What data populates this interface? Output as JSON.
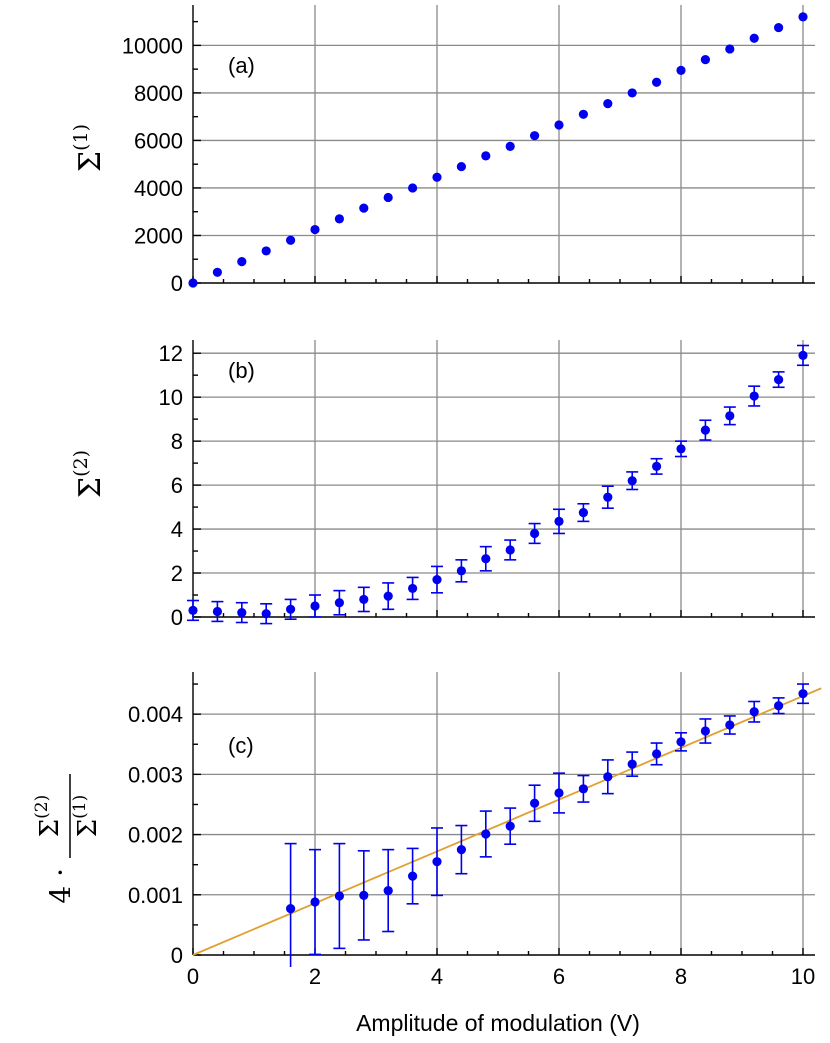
{
  "figure": {
    "xlabel": "Amplitude of modulation (V)",
    "colors": {
      "points": "#0000ee",
      "fit_line": "#e0a030",
      "grid": "#8a8a8a",
      "axes": "#000000"
    }
  },
  "chart_data": [
    {
      "type": "scatter",
      "panel_label": "(a)",
      "ylabel_symbol": "Σ",
      "ylabel_superscript": "(1)",
      "xlim": [
        0,
        10.3
      ],
      "ylim": [
        0,
        11700
      ],
      "x_ticks": [
        0,
        2,
        4,
        6,
        8,
        10
      ],
      "y_ticks": [
        0,
        2000,
        4000,
        6000,
        8000,
        10000
      ],
      "y_tick_labels": [
        "0",
        "2000",
        "4000",
        "6000",
        "8000",
        "10000"
      ],
      "grid": true,
      "series": [
        {
          "x": [
            0,
            0.4,
            0.8,
            1.2,
            1.6,
            2.0,
            2.4,
            2.8,
            3.2,
            3.6,
            4.0,
            4.4,
            4.8,
            5.2,
            5.6,
            6.0,
            6.4,
            6.8,
            7.2,
            7.6,
            8.0,
            8.4,
            8.8,
            9.2,
            9.6,
            10.0
          ],
          "y": [
            0,
            450,
            900,
            1350,
            1800,
            2250,
            2700,
            3150,
            3600,
            4000,
            4450,
            4900,
            5350,
            5750,
            6200,
            6650,
            7100,
            7550,
            8000,
            8450,
            8950,
            9400,
            9850,
            10300,
            10750,
            11200
          ],
          "err": [
            0,
            0,
            0,
            0,
            0,
            0,
            0,
            0,
            0,
            0,
            0,
            0,
            0,
            0,
            0,
            0,
            0,
            0,
            0,
            0,
            0,
            0,
            0,
            0,
            0,
            0
          ]
        }
      ]
    },
    {
      "type": "scatter",
      "panel_label": "(b)",
      "ylabel_symbol": "Σ",
      "ylabel_superscript": "(2)",
      "xlim": [
        0,
        10.3
      ],
      "ylim": [
        0,
        12.6
      ],
      "x_ticks": [
        0,
        2,
        4,
        6,
        8,
        10
      ],
      "y_ticks": [
        0,
        2,
        4,
        6,
        8,
        10,
        12
      ],
      "y_tick_labels": [
        "0",
        "2",
        "4",
        "6",
        "8",
        "10",
        "12"
      ],
      "grid": true,
      "series": [
        {
          "x": [
            0,
            0.4,
            0.8,
            1.2,
            1.6,
            2.0,
            2.4,
            2.8,
            3.2,
            3.6,
            4.0,
            4.4,
            4.8,
            5.2,
            5.6,
            6.0,
            6.4,
            6.8,
            7.2,
            7.6,
            8.0,
            8.4,
            8.8,
            9.2,
            9.6,
            10.0
          ],
          "y": [
            0.3,
            0.25,
            0.2,
            0.15,
            0.35,
            0.5,
            0.65,
            0.8,
            0.95,
            1.3,
            1.7,
            2.1,
            2.65,
            3.05,
            3.8,
            4.35,
            4.75,
            5.45,
            6.2,
            6.85,
            7.65,
            8.5,
            9.15,
            10.05,
            10.8,
            11.9
          ],
          "err": [
            0.45,
            0.45,
            0.45,
            0.45,
            0.45,
            0.5,
            0.55,
            0.55,
            0.6,
            0.5,
            0.6,
            0.5,
            0.55,
            0.45,
            0.45,
            0.55,
            0.4,
            0.5,
            0.4,
            0.35,
            0.35,
            0.45,
            0.4,
            0.45,
            0.35,
            0.45
          ]
        }
      ]
    },
    {
      "type": "scatter",
      "panel_label": "(c)",
      "ylabel_prefix": "4 ·",
      "ylabel_numerator": "Σ",
      "ylabel_numerator_sup": "(2)",
      "ylabel_denominator": "Σ",
      "ylabel_denominator_sup": "(1)",
      "xlim": [
        0,
        10.3
      ],
      "ylim": [
        0,
        0.0047
      ],
      "x_ticks": [
        0,
        2,
        4,
        6,
        8,
        10
      ],
      "x_tick_labels": [
        "0",
        "2",
        "4",
        "6",
        "8",
        "10"
      ],
      "y_ticks": [
        0,
        0.001,
        0.002,
        0.003,
        0.004
      ],
      "y_tick_labels": [
        "0",
        "0.001",
        "0.002",
        "0.003",
        "0.004"
      ],
      "grid": true,
      "fit_line": {
        "x": [
          0,
          10.3
        ],
        "y": [
          0,
          0.00443
        ]
      },
      "series": [
        {
          "x": [
            1.6,
            2.0,
            2.4,
            2.8,
            3.2,
            3.6,
            4.0,
            4.4,
            4.8,
            5.2,
            5.6,
            6.0,
            6.4,
            6.8,
            7.2,
            7.6,
            8.0,
            8.4,
            8.8,
            9.2,
            9.6,
            10.0
          ],
          "y": [
            0.00077,
            0.00088,
            0.00098,
            0.00099,
            0.00107,
            0.00131,
            0.00155,
            0.00175,
            0.00201,
            0.00214,
            0.00252,
            0.00269,
            0.00276,
            0.00296,
            0.00317,
            0.00334,
            0.00354,
            0.00372,
            0.00382,
            0.00404,
            0.00414,
            0.00434
          ],
          "err": [
            0.00108,
            0.00087,
            0.00087,
            0.00074,
            0.00068,
            0.00046,
            0.00056,
            0.0004,
            0.00038,
            0.0003,
            0.0003,
            0.00033,
            0.00022,
            0.00028,
            0.0002,
            0.00018,
            0.00015,
            0.0002,
            0.00015,
            0.00017,
            0.00013,
            0.00016
          ]
        }
      ]
    }
  ]
}
